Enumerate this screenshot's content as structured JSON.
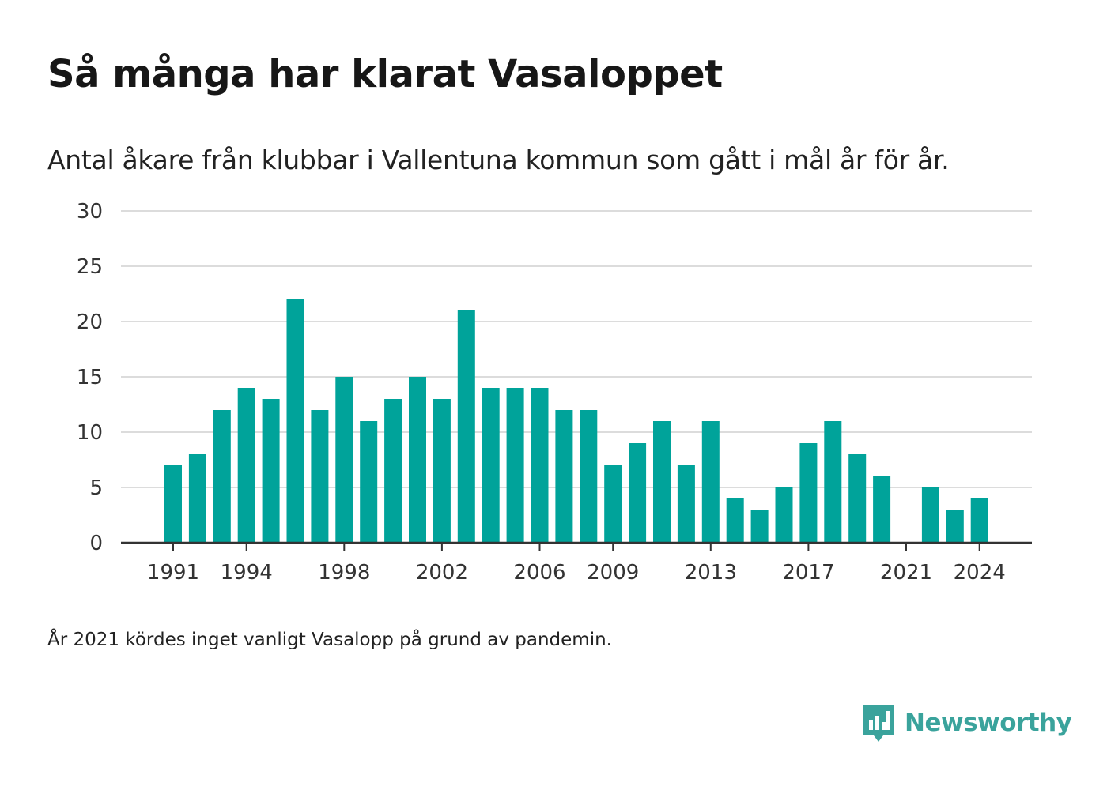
{
  "title": "Så många har klarat Vasaloppet",
  "subtitle": "Antal åkare från klubbar i Vallentuna kommun som gått i mål år för år.",
  "footnote": "År 2021 kördes inget vanligt Vasalopp på grund av pandemin.",
  "brand": {
    "name": "Newsworthy",
    "color": "#3aa39c"
  },
  "chart_data": {
    "type": "bar",
    "color": "#00a39a",
    "years": [
      1991,
      1992,
      1993,
      1994,
      1995,
      1996,
      1997,
      1998,
      1999,
      2000,
      2001,
      2002,
      2003,
      2004,
      2005,
      2006,
      2007,
      2008,
      2009,
      2010,
      2011,
      2012,
      2013,
      2014,
      2015,
      2016,
      2017,
      2018,
      2019,
      2020,
      2021,
      2022,
      2023,
      2024
    ],
    "values": [
      7,
      8,
      12,
      14,
      13,
      22,
      12,
      15,
      11,
      13,
      15,
      13,
      21,
      14,
      14,
      14,
      12,
      12,
      7,
      9,
      11,
      7,
      11,
      4,
      3,
      5,
      9,
      11,
      8,
      6,
      0,
      5,
      3,
      4
    ],
    "xticks": [
      1991,
      1994,
      1998,
      2002,
      2006,
      2009,
      2013,
      2017,
      2021,
      2024
    ],
    "yticks": [
      0,
      5,
      10,
      15,
      20,
      25,
      30
    ],
    "ylim": [
      0,
      30
    ],
    "grid": true
  }
}
